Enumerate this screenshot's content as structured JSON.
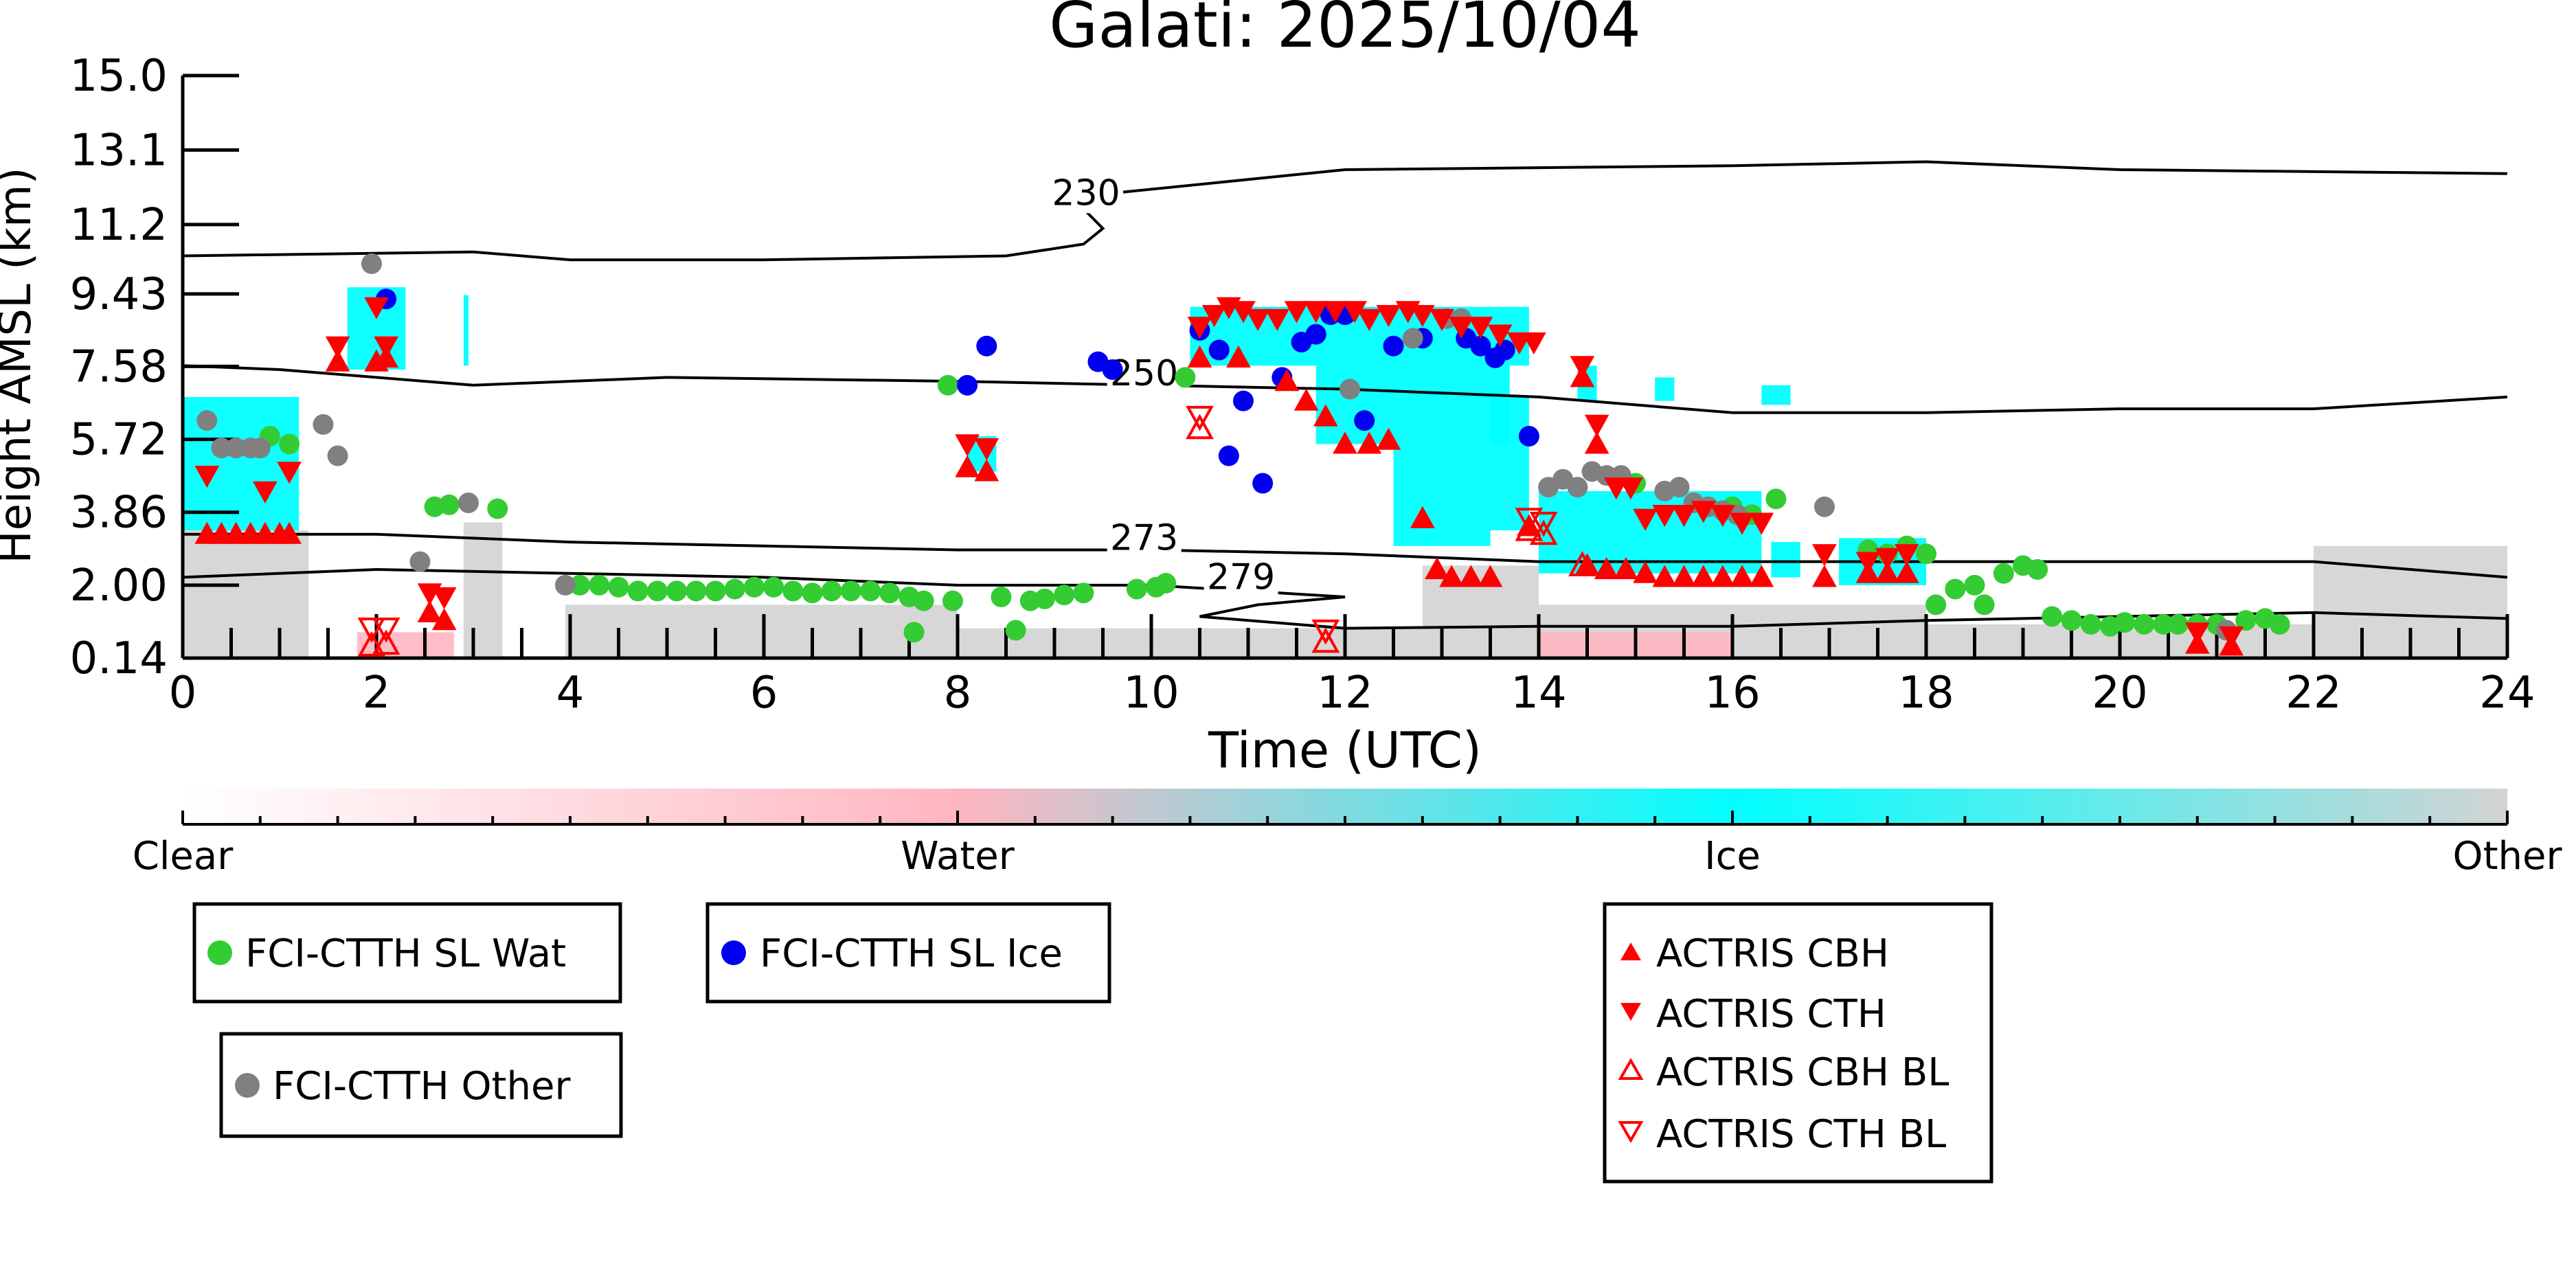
{
  "chart_data": {
    "type": "scatter",
    "title": "Galati: 2025/10/04",
    "xlabel": "Time (UTC)",
    "ylabel": "Height AMSL (km)",
    "xlim": [
      0,
      24
    ],
    "ylim": [
      0.14,
      15.0
    ],
    "x_ticks": [
      0,
      2,
      4,
      6,
      8,
      10,
      12,
      14,
      16,
      18,
      20,
      22,
      24
    ],
    "y_ticks": [
      0.14,
      2.0,
      3.86,
      5.72,
      7.58,
      9.43,
      11.2,
      13.1,
      15.0
    ],
    "y_tick_labels": [
      "0.14",
      "2.00",
      "3.86",
      "5.72",
      "7.58",
      "9.43",
      "11.2",
      "13.1",
      "15.0"
    ],
    "colorbar": {
      "labels": [
        "Clear",
        "Water",
        "Ice",
        "Other"
      ],
      "colors": [
        "#ffffff",
        "#ffb6c1",
        "#00ffff",
        "#d3d3d3"
      ]
    },
    "temperature_contours": [
      {
        "label": "230",
        "label_at": [
          9.0,
          11.7
        ],
        "points": [
          [
            0,
            10.4
          ],
          [
            3,
            10.5
          ],
          [
            4,
            10.3
          ],
          [
            6,
            10.3
          ],
          [
            8.5,
            10.4
          ],
          [
            9.3,
            10.7
          ],
          [
            9.5,
            11.1
          ],
          [
            9.3,
            11.6
          ],
          [
            9.6,
            12.0
          ],
          [
            12,
            12.6
          ],
          [
            16,
            12.7
          ],
          [
            18,
            12.8
          ],
          [
            20,
            12.6
          ],
          [
            24,
            12.5
          ]
        ]
      },
      {
        "label": "250",
        "label_at": [
          9.6,
          7.1
        ],
        "points": [
          [
            0,
            7.6
          ],
          [
            1,
            7.5
          ],
          [
            3,
            7.1
          ],
          [
            5,
            7.3
          ],
          [
            8,
            7.2
          ],
          [
            10,
            7.1
          ],
          [
            12,
            7.0
          ],
          [
            14,
            6.8
          ],
          [
            16,
            6.4
          ],
          [
            18,
            6.4
          ],
          [
            20,
            6.5
          ],
          [
            22,
            6.5
          ],
          [
            24,
            6.8
          ]
        ]
      },
      {
        "label": "273",
        "label_at": [
          9.6,
          2.9
        ],
        "points": [
          [
            0,
            3.3
          ],
          [
            2,
            3.3
          ],
          [
            4,
            3.1
          ],
          [
            6,
            3.0
          ],
          [
            8,
            2.9
          ],
          [
            10,
            2.9
          ],
          [
            12,
            2.8
          ],
          [
            14,
            2.6
          ],
          [
            16,
            2.6
          ],
          [
            18,
            2.6
          ],
          [
            20,
            2.6
          ],
          [
            22,
            2.6
          ],
          [
            24,
            2.2
          ]
        ]
      },
      {
        "label": "279",
        "label_at": [
          10.6,
          1.9
        ],
        "points": [
          [
            0,
            2.2
          ],
          [
            2,
            2.4
          ],
          [
            4,
            2.3
          ],
          [
            6,
            2.2
          ],
          [
            8,
            2.0
          ],
          [
            10,
            2.0
          ],
          [
            11,
            1.85
          ],
          [
            12,
            1.7
          ],
          [
            11.1,
            1.5
          ],
          [
            10.5,
            1.2
          ],
          [
            12,
            0.9
          ],
          [
            14,
            0.95
          ],
          [
            16,
            0.95
          ],
          [
            18,
            1.1
          ],
          [
            20,
            1.2
          ],
          [
            22,
            1.3
          ],
          [
            24,
            1.15
          ]
        ]
      }
    ],
    "series": [
      {
        "name": "FCI-CTTH SL Wat",
        "marker": "circle",
        "color": "#33cc33",
        "points": [
          [
            0.9,
            5.8
          ],
          [
            1.1,
            5.6
          ],
          [
            2.6,
            4.0
          ],
          [
            2.75,
            4.05
          ],
          [
            3.25,
            3.95
          ],
          [
            4.1,
            2.0
          ],
          [
            4.3,
            2.0
          ],
          [
            4.5,
            1.95
          ],
          [
            4.7,
            1.85
          ],
          [
            4.9,
            1.85
          ],
          [
            5.1,
            1.85
          ],
          [
            5.3,
            1.85
          ],
          [
            5.5,
            1.85
          ],
          [
            5.7,
            1.9
          ],
          [
            5.9,
            1.95
          ],
          [
            6.1,
            1.95
          ],
          [
            6.3,
            1.85
          ],
          [
            6.5,
            1.8
          ],
          [
            6.7,
            1.85
          ],
          [
            6.9,
            1.85
          ],
          [
            7.1,
            1.85
          ],
          [
            7.3,
            1.8
          ],
          [
            7.5,
            1.7
          ],
          [
            7.65,
            1.6
          ],
          [
            7.55,
            0.8
          ],
          [
            7.95,
            1.6
          ],
          [
            7.9,
            7.1
          ],
          [
            8.45,
            1.7
          ],
          [
            8.6,
            0.85
          ],
          [
            8.75,
            1.6
          ],
          [
            8.9,
            1.65
          ],
          [
            9.1,
            1.75
          ],
          [
            9.3,
            1.8
          ],
          [
            10.35,
            7.3
          ],
          [
            9.85,
            1.9
          ],
          [
            10.05,
            1.95
          ],
          [
            10.15,
            2.05
          ],
          [
            15.0,
            4.6
          ],
          [
            16.0,
            4.0
          ],
          [
            16.2,
            3.8
          ],
          [
            16.45,
            4.2
          ],
          [
            17.4,
            2.9
          ],
          [
            17.6,
            2.8
          ],
          [
            17.8,
            3.0
          ],
          [
            18.0,
            2.8
          ],
          [
            18.1,
            1.5
          ],
          [
            18.3,
            1.9
          ],
          [
            18.5,
            2.0
          ],
          [
            18.6,
            1.5
          ],
          [
            18.8,
            2.3
          ],
          [
            19.0,
            2.5
          ],
          [
            19.15,
            2.4
          ],
          [
            19.3,
            1.2
          ],
          [
            19.5,
            1.1
          ],
          [
            19.7,
            1.0
          ],
          [
            19.9,
            0.95
          ],
          [
            20.05,
            1.05
          ],
          [
            20.25,
            1.0
          ],
          [
            20.45,
            1.0
          ],
          [
            20.6,
            1.0
          ],
          [
            20.8,
            1.0
          ],
          [
            21.0,
            1.0
          ],
          [
            21.3,
            1.1
          ],
          [
            21.5,
            1.15
          ],
          [
            21.65,
            1.0
          ]
        ]
      },
      {
        "name": "FCI-CTTH SL Ice",
        "marker": "circle",
        "color": "#0000ee",
        "points": [
          [
            2.1,
            9.3
          ],
          [
            8.1,
            7.1
          ],
          [
            8.3,
            8.1
          ],
          [
            9.45,
            7.7
          ],
          [
            9.6,
            7.5
          ],
          [
            10.5,
            8.5
          ],
          [
            10.7,
            8.0
          ],
          [
            10.8,
            5.3
          ],
          [
            10.95,
            6.7
          ],
          [
            11.15,
            4.6
          ],
          [
            11.35,
            7.3
          ],
          [
            11.55,
            8.2
          ],
          [
            11.7,
            8.4
          ],
          [
            11.85,
            8.9
          ],
          [
            12.0,
            8.9
          ],
          [
            12.2,
            6.2
          ],
          [
            12.5,
            8.1
          ],
          [
            12.8,
            8.3
          ],
          [
            13.25,
            8.3
          ],
          [
            13.4,
            8.1
          ],
          [
            13.55,
            7.8
          ],
          [
            13.65,
            8.0
          ],
          [
            13.9,
            5.8
          ]
        ]
      },
      {
        "name": "FCI-CTTH Other",
        "marker": "circle",
        "color": "#808080",
        "points": [
          [
            0.25,
            6.2
          ],
          [
            0.4,
            5.5
          ],
          [
            0.55,
            5.5
          ],
          [
            0.7,
            5.5
          ],
          [
            0.8,
            5.5
          ],
          [
            1.45,
            6.1
          ],
          [
            1.6,
            5.3
          ],
          [
            1.95,
            10.2
          ],
          [
            2.45,
            2.6
          ],
          [
            2.95,
            4.1
          ],
          [
            3.95,
            2.0
          ],
          [
            12.05,
            7.0
          ],
          [
            12.7,
            8.3
          ],
          [
            13.05,
            8.8
          ],
          [
            13.2,
            8.8
          ],
          [
            14.1,
            4.5
          ],
          [
            14.25,
            4.7
          ],
          [
            14.4,
            4.5
          ],
          [
            14.55,
            4.9
          ],
          [
            14.7,
            4.8
          ],
          [
            14.85,
            4.8
          ],
          [
            15.3,
            4.4
          ],
          [
            15.45,
            4.5
          ],
          [
            15.6,
            4.1
          ],
          [
            15.75,
            4.0
          ],
          [
            15.9,
            3.9
          ],
          [
            16.05,
            3.8
          ],
          [
            16.95,
            4.0
          ],
          [
            21.1,
            0.85
          ]
        ]
      },
      {
        "name": "ACTRIS CBH",
        "marker": "triangle-up",
        "color": "#ff0000",
        "points": [
          [
            0.25,
            3.3
          ],
          [
            0.4,
            3.3
          ],
          [
            0.55,
            3.3
          ],
          [
            0.7,
            3.3
          ],
          [
            0.85,
            3.3
          ],
          [
            1.0,
            3.3
          ],
          [
            1.1,
            3.3
          ],
          [
            1.6,
            7.7
          ],
          [
            2.0,
            7.7
          ],
          [
            2.1,
            7.8
          ],
          [
            2.55,
            1.3
          ],
          [
            2.7,
            1.1
          ],
          [
            8.1,
            5.0
          ],
          [
            8.3,
            4.9
          ],
          [
            10.5,
            7.8
          ],
          [
            10.9,
            7.8
          ],
          [
            11.4,
            7.2
          ],
          [
            11.6,
            6.7
          ],
          [
            11.8,
            6.3
          ],
          [
            12.0,
            5.6
          ],
          [
            12.25,
            5.6
          ],
          [
            12.45,
            5.7
          ],
          [
            12.8,
            3.7
          ],
          [
            12.95,
            2.4
          ],
          [
            13.1,
            2.2
          ],
          [
            13.3,
            2.2
          ],
          [
            13.5,
            2.2
          ],
          [
            13.9,
            3.5
          ],
          [
            14.45,
            7.3
          ],
          [
            14.6,
            5.6
          ],
          [
            14.5,
            2.5
          ],
          [
            14.7,
            2.4
          ],
          [
            14.9,
            2.4
          ],
          [
            15.1,
            2.3
          ],
          [
            15.3,
            2.2
          ],
          [
            15.5,
            2.2
          ],
          [
            15.7,
            2.2
          ],
          [
            15.9,
            2.2
          ],
          [
            16.1,
            2.2
          ],
          [
            16.3,
            2.2
          ],
          [
            16.95,
            2.2
          ],
          [
            17.4,
            2.3
          ],
          [
            17.6,
            2.3
          ],
          [
            17.8,
            2.3
          ],
          [
            20.8,
            0.5
          ],
          [
            21.15,
            0.45
          ]
        ]
      },
      {
        "name": "ACTRIS CTH",
        "marker": "triangle-down",
        "color": "#ff0000",
        "points": [
          [
            0.25,
            4.8
          ],
          [
            0.85,
            4.4
          ],
          [
            1.1,
            4.9
          ],
          [
            1.6,
            8.1
          ],
          [
            2.0,
            9.1
          ],
          [
            2.1,
            8.1
          ],
          [
            2.55,
            1.8
          ],
          [
            2.7,
            1.7
          ],
          [
            8.1,
            5.6
          ],
          [
            8.3,
            5.5
          ],
          [
            10.5,
            8.6
          ],
          [
            10.65,
            8.9
          ],
          [
            10.8,
            9.1
          ],
          [
            10.95,
            9.0
          ],
          [
            11.1,
            8.8
          ],
          [
            11.3,
            8.8
          ],
          [
            11.5,
            9.0
          ],
          [
            11.7,
            9.0
          ],
          [
            11.9,
            9.0
          ],
          [
            12.1,
            9.0
          ],
          [
            12.25,
            8.8
          ],
          [
            12.45,
            8.9
          ],
          [
            12.65,
            9.0
          ],
          [
            12.8,
            8.9
          ],
          [
            13.0,
            8.8
          ],
          [
            13.2,
            8.6
          ],
          [
            13.4,
            8.6
          ],
          [
            13.6,
            8.4
          ],
          [
            13.8,
            8.2
          ],
          [
            13.95,
            8.2
          ],
          [
            14.45,
            7.6
          ],
          [
            14.6,
            6.1
          ],
          [
            14.8,
            4.5
          ],
          [
            14.95,
            4.5
          ],
          [
            15.1,
            3.7
          ],
          [
            15.3,
            3.8
          ],
          [
            15.5,
            3.8
          ],
          [
            15.7,
            3.9
          ],
          [
            15.9,
            3.8
          ],
          [
            16.1,
            3.6
          ],
          [
            16.3,
            3.6
          ],
          [
            16.95,
            2.8
          ],
          [
            17.4,
            2.6
          ],
          [
            17.6,
            2.7
          ],
          [
            17.8,
            2.8
          ],
          [
            20.8,
            0.8
          ],
          [
            21.15,
            0.7
          ]
        ]
      },
      {
        "name": "ACTRIS CBH BL",
        "marker": "triangle-up-open",
        "color": "#ff0000",
        "points": [
          [
            1.95,
            0.45
          ],
          [
            2.1,
            0.5
          ],
          [
            10.5,
            6.0
          ],
          [
            11.8,
            0.55
          ],
          [
            13.9,
            3.4
          ],
          [
            14.05,
            3.3
          ],
          [
            14.45,
            2.5
          ]
        ]
      },
      {
        "name": "ACTRIS CTH BL",
        "marker": "triangle-down-open",
        "color": "#ff0000",
        "points": [
          [
            1.95,
            0.9
          ],
          [
            2.1,
            0.9
          ],
          [
            10.5,
            6.3
          ],
          [
            11.8,
            0.85
          ],
          [
            13.9,
            3.7
          ],
          [
            14.05,
            3.6
          ]
        ]
      }
    ]
  },
  "legend": {
    "wat": "FCI-CTTH SL Wat",
    "ice": "FCI-CTTH SL Ice",
    "other": "FCI-CTTH Other",
    "cbh": "ACTRIS CBH",
    "cth": "ACTRIS CTH",
    "cbh_bl": "ACTRIS CBH BL",
    "cth_bl": "ACTRIS CTH BL"
  }
}
